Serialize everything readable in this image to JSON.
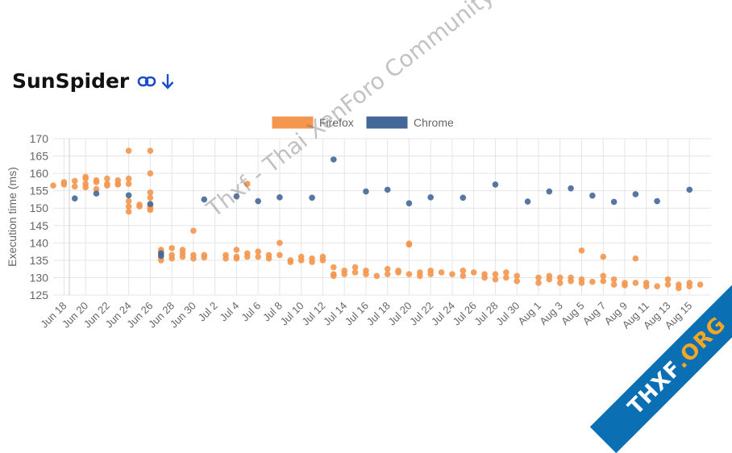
{
  "page": {
    "title": "SunSpider"
  },
  "icons": {
    "link": "link-icon",
    "download": "arrow-down-icon"
  },
  "watermark": "Thxf - Thai XenForo Community",
  "ribbon": {
    "main": "THXF",
    "suffix": ".ORG"
  },
  "colors": {
    "firefox": "#f4964e",
    "chrome": "#44679a",
    "accent": "#1a4cc7",
    "ribbon": "#0b6fb3"
  },
  "chart_data": {
    "type": "scatter",
    "title": "",
    "ylabel": "Execution time (ms)",
    "xlabel": "",
    "ylim": [
      125,
      170
    ],
    "yticks": [
      125,
      130,
      135,
      140,
      145,
      150,
      155,
      160,
      165,
      170
    ],
    "xlim": [
      "Jun 17",
      "Aug 17"
    ],
    "xticks": [
      "Jun 18",
      "Jun 20",
      "Jun 22",
      "Jun 24",
      "Jun 26",
      "Jun 28",
      "Jun 30",
      "Jul 2",
      "Jul 4",
      "Jul 6",
      "Jul 8",
      "Jul 10",
      "Jul 12",
      "Jul 14",
      "Jul 16",
      "Jul 18",
      "Jul 20",
      "Jul 22",
      "Jul 24",
      "Jul 26",
      "Jul 28",
      "Jul 30",
      "Aug 1",
      "Aug 3",
      "Aug 5",
      "Aug 7",
      "Aug 9",
      "Aug 11",
      "Aug 13",
      "Aug 15"
    ],
    "grid": true,
    "legend_position": "top",
    "series": [
      {
        "name": "Firefox",
        "color": "#f4964e",
        "points": [
          [
            "Jun 17",
            156.5
          ],
          [
            "Jun 18",
            157.5
          ],
          [
            "Jun 18",
            156.8
          ],
          [
            "Jun 19",
            157.8
          ],
          [
            "Jun 19",
            156.2
          ],
          [
            "Jun 20",
            159
          ],
          [
            "Jun 20",
            157
          ],
          [
            "Jun 20",
            156
          ],
          [
            "Jun 20",
            158.5
          ],
          [
            "Jun 21",
            157.5
          ],
          [
            "Jun 21",
            155.5
          ],
          [
            "Jun 21",
            158
          ],
          [
            "Jun 22",
            158.5
          ],
          [
            "Jun 22",
            157
          ],
          [
            "Jun 22",
            156.5
          ],
          [
            "Jun 23",
            157
          ],
          [
            "Jun 23",
            158
          ],
          [
            "Jun 23",
            156.8
          ],
          [
            "Jun 24",
            166.5
          ],
          [
            "Jun 24",
            158.5
          ],
          [
            "Jun 24",
            157
          ],
          [
            "Jun 24",
            152
          ],
          [
            "Jun 24",
            150.5
          ],
          [
            "Jun 24",
            149
          ],
          [
            "Jun 25",
            151
          ],
          [
            "Jun 25",
            150.5
          ],
          [
            "Jun 26",
            150.5
          ],
          [
            "Jun 26",
            151
          ],
          [
            "Jun 26",
            166.5
          ],
          [
            "Jun 26",
            160
          ],
          [
            "Jun 26",
            154.5
          ],
          [
            "Jun 26",
            153
          ],
          [
            "Jun 26",
            150
          ],
          [
            "Jun 26",
            149.5
          ],
          [
            "Jun 27",
            138
          ],
          [
            "Jun 27",
            136
          ],
          [
            "Jun 27",
            135
          ],
          [
            "Jun 27",
            137.5
          ],
          [
            "Jun 28",
            138.5
          ],
          [
            "Jun 28",
            136.5
          ],
          [
            "Jun 28",
            135.5
          ],
          [
            "Jun 29",
            137
          ],
          [
            "Jun 29",
            136
          ],
          [
            "Jun 29",
            138
          ],
          [
            "Jun 30",
            136.5
          ],
          [
            "Jun 30",
            143.5
          ],
          [
            "Jun 30",
            135.5
          ],
          [
            "Jul 1",
            136.5
          ],
          [
            "Jul 1",
            135.8
          ],
          [
            "Jul 3",
            136.5
          ],
          [
            "Jul 3",
            135.5
          ],
          [
            "Jul 4",
            136
          ],
          [
            "Jul 4",
            135.5
          ],
          [
            "Jul 4",
            138
          ],
          [
            "Jul 5",
            137
          ],
          [
            "Jul 5",
            136
          ],
          [
            "Jul 5",
            157
          ],
          [
            "Jul 6",
            137.5
          ],
          [
            "Jul 6",
            136
          ],
          [
            "Jul 7",
            136.5
          ],
          [
            "Jul 7",
            135.5
          ],
          [
            "Jul 8",
            140
          ],
          [
            "Jul 8",
            136.5
          ],
          [
            "Jul 9",
            135
          ],
          [
            "Jul 9",
            134.5
          ],
          [
            "Jul 10",
            136
          ],
          [
            "Jul 10",
            135
          ],
          [
            "Jul 11",
            135.5
          ],
          [
            "Jul 11",
            134.5
          ],
          [
            "Jul 12",
            136
          ],
          [
            "Jul 12",
            135
          ],
          [
            "Jul 13",
            133
          ],
          [
            "Jul 13",
            131
          ],
          [
            "Jul 13",
            130.5
          ],
          [
            "Jul 14",
            132
          ],
          [
            "Jul 14",
            131
          ],
          [
            "Jul 15",
            133
          ],
          [
            "Jul 15",
            131.5
          ],
          [
            "Jul 16",
            131
          ],
          [
            "Jul 16",
            132
          ],
          [
            "Jul 17",
            130.5
          ],
          [
            "Jul 18",
            132.5
          ],
          [
            "Jul 18",
            131
          ],
          [
            "Jul 19",
            131.5
          ],
          [
            "Jul 19",
            132
          ],
          [
            "Jul 20",
            139.5
          ],
          [
            "Jul 20",
            139.8
          ],
          [
            "Jul 20",
            131
          ],
          [
            "Jul 21",
            131.5
          ],
          [
            "Jul 21",
            130.5
          ],
          [
            "Jul 22",
            132
          ],
          [
            "Jul 22",
            131
          ],
          [
            "Jul 23",
            131.5
          ],
          [
            "Jul 24",
            131
          ],
          [
            "Jul 25",
            132
          ],
          [
            "Jul 25",
            130.5
          ],
          [
            "Jul 26",
            131.5
          ],
          [
            "Jul 27",
            130
          ],
          [
            "Jul 27",
            131
          ],
          [
            "Jul 28",
            129.5
          ],
          [
            "Jul 28",
            131
          ],
          [
            "Jul 29",
            131.5
          ],
          [
            "Jul 29",
            130
          ],
          [
            "Jul 30",
            130.5
          ],
          [
            "Jul 30",
            129
          ],
          [
            "Aug 1",
            130
          ],
          [
            "Aug 1",
            128.5
          ],
          [
            "Aug 2",
            129.5
          ],
          [
            "Aug 2",
            130.5
          ],
          [
            "Aug 3",
            128.5
          ],
          [
            "Aug 3",
            130
          ],
          [
            "Aug 4",
            129
          ],
          [
            "Aug 4",
            130
          ],
          [
            "Aug 5",
            137.8
          ],
          [
            "Aug 5",
            129.5
          ],
          [
            "Aug 5",
            128.5
          ],
          [
            "Aug 6",
            128.8
          ],
          [
            "Aug 7",
            136
          ],
          [
            "Aug 7",
            130.5
          ],
          [
            "Aug 7",
            129
          ],
          [
            "Aug 8",
            129.5
          ],
          [
            "Aug 8",
            128
          ],
          [
            "Aug 9",
            128.5
          ],
          [
            "Aug 9",
            127.8
          ],
          [
            "Aug 10",
            135.5
          ],
          [
            "Aug 10",
            128.5
          ],
          [
            "Aug 11",
            127.5
          ],
          [
            "Aug 11",
            128.5
          ],
          [
            "Aug 12",
            127.5
          ],
          [
            "Aug 13",
            129.5
          ],
          [
            "Aug 13",
            128
          ],
          [
            "Aug 14",
            127
          ],
          [
            "Aug 14",
            128
          ],
          [
            "Aug 15",
            128.5
          ],
          [
            "Aug 15",
            127.5
          ],
          [
            "Aug 16",
            128
          ]
        ]
      },
      {
        "name": "Chrome",
        "color": "#44679a",
        "points": [
          [
            "Jun 19",
            152.8
          ],
          [
            "Jun 21",
            154.2
          ],
          [
            "Jun 24",
            153.7
          ],
          [
            "Jun 26",
            151.2
          ],
          [
            "Jun 27",
            137
          ],
          [
            "Jun 27",
            136.3
          ],
          [
            "Jul 1",
            152.5
          ],
          [
            "Jul 4",
            153.4
          ],
          [
            "Jul 6",
            152
          ],
          [
            "Jul 8",
            153.1
          ],
          [
            "Jul 11",
            153
          ],
          [
            "Jul 13",
            164
          ],
          [
            "Jul 16",
            154.8
          ],
          [
            "Jul 18",
            155.3
          ],
          [
            "Jul 20",
            151.4
          ],
          [
            "Jul 22",
            153.1
          ],
          [
            "Jul 25",
            153
          ],
          [
            "Jul 28",
            156.8
          ],
          [
            "Jul 31",
            151.9
          ],
          [
            "Aug 2",
            154.8
          ],
          [
            "Aug 4",
            155.7
          ],
          [
            "Aug 6",
            153.6
          ],
          [
            "Aug 8",
            151.8
          ],
          [
            "Aug 10",
            154
          ],
          [
            "Aug 12",
            152
          ],
          [
            "Aug 15",
            155.3
          ]
        ]
      }
    ]
  }
}
